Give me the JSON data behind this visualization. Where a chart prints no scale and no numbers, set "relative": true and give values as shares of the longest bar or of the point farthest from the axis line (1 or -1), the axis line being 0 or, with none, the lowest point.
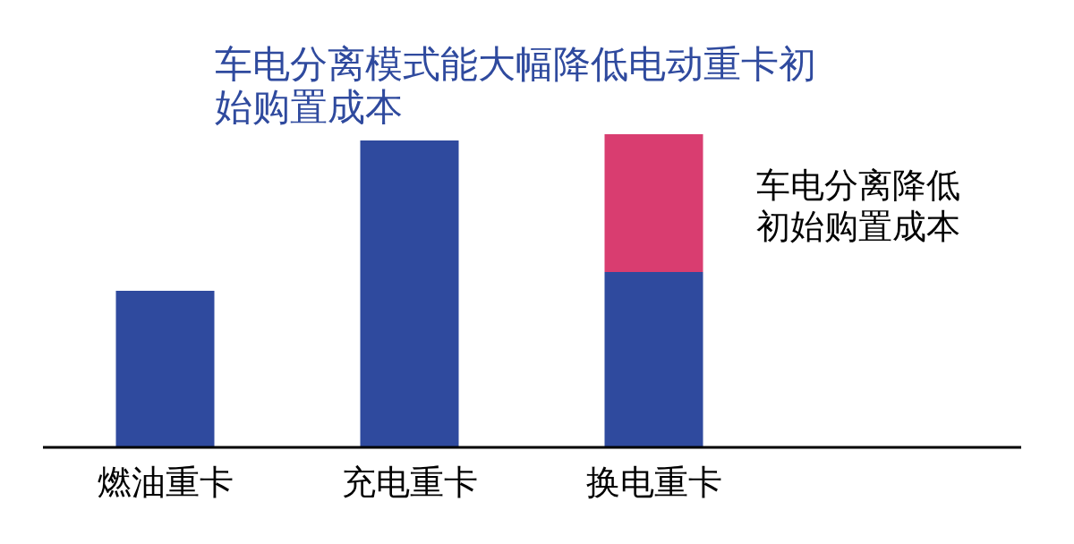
{
  "chart_data": {
    "type": "bar",
    "title": "车电分离模式能大幅降低电动重卡初始购置成本",
    "categories": [
      "燃油重卡",
      "充电重卡",
      "换电重卡"
    ],
    "relative": true,
    "stacked": true,
    "series": [
      {
        "color": "#2f4a9e",
        "values": [
          0.5,
          0.98,
          0.56
        ]
      },
      {
        "color": "#d93d70",
        "values": [
          null,
          null,
          0.44
        ]
      }
    ],
    "annotations": [
      "车电分离降低初始购置成本"
    ]
  }
}
